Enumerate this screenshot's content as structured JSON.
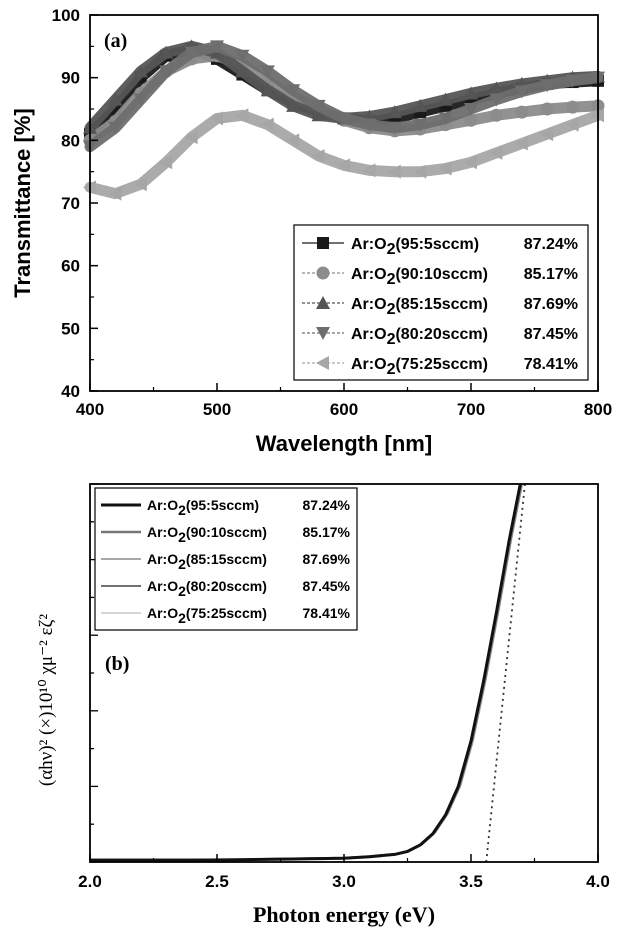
{
  "chart_data": [
    {
      "panel": "(a)",
      "type": "line",
      "xlabel": "Wavelength [nm]",
      "ylabel": "Transmittance [%]",
      "xlim": [
        400,
        800
      ],
      "ylim": [
        40,
        100
      ],
      "xticks": [
        "400",
        "500",
        "600",
        "700",
        "800"
      ],
      "yticks": [
        "40",
        "50",
        "60",
        "70",
        "80",
        "90",
        "100"
      ],
      "legend_position": "lower-right",
      "series": [
        {
          "name": "Ar:O2(95:5sccm)",
          "sub": "2",
          "pre": "Ar:O",
          "post": "(95:5sccm)",
          "avg": "87.24%",
          "color": "#1a1a1a",
          "marker": "square",
          "x": [
            400,
            420,
            440,
            460,
            480,
            500,
            520,
            540,
            560,
            580,
            600,
            620,
            640,
            660,
            680,
            700,
            720,
            740,
            760,
            780,
            800
          ],
          "y": [
            81,
            85,
            90,
            93.5,
            94.5,
            93,
            90.5,
            88,
            86,
            84.5,
            83.5,
            83,
            83.5,
            84.5,
            85.5,
            86.5,
            87.5,
            88.3,
            89,
            89.3,
            89.5
          ]
        },
        {
          "name": "Ar:O2(90:10sccm)",
          "sub": "2",
          "pre": "Ar:O",
          "post": "(90:10sccm)",
          "avg": "85.17%",
          "color": "#8c8c8c",
          "marker": "circle",
          "x": [
            400,
            420,
            440,
            460,
            480,
            500,
            520,
            540,
            560,
            580,
            600,
            620,
            640,
            660,
            680,
            700,
            720,
            740,
            760,
            780,
            800
          ],
          "y": [
            80,
            83,
            87.5,
            91,
            93,
            93.5,
            92,
            89.5,
            87,
            85,
            83.2,
            82,
            81.5,
            81.8,
            82.5,
            83.2,
            84,
            84.5,
            85,
            85.3,
            85.5
          ]
        },
        {
          "name": "Ar:O2(85:15sccm)",
          "sub": "2",
          "pre": "Ar:O",
          "post": "(85:15sccm)",
          "avg": "87.69%",
          "color": "#555555",
          "marker": "triangle-up",
          "x": [
            400,
            420,
            440,
            460,
            480,
            500,
            520,
            540,
            560,
            580,
            600,
            620,
            640,
            660,
            680,
            700,
            720,
            740,
            760,
            780,
            800
          ],
          "y": [
            82,
            86.5,
            91,
            94,
            95,
            94,
            91,
            88,
            85.5,
            84,
            83.5,
            83.8,
            84.5,
            85.5,
            86.5,
            87.5,
            88.3,
            89,
            89.5,
            90,
            90.2
          ]
        },
        {
          "name": "Ar:O2(80:20sccm)",
          "sub": "2",
          "pre": "Ar:O",
          "post": "(80:20sccm)",
          "avg": "87.45%",
          "color": "#6e6e6e",
          "marker": "triangle-down",
          "x": [
            400,
            420,
            440,
            460,
            480,
            500,
            520,
            540,
            560,
            580,
            600,
            620,
            640,
            660,
            680,
            700,
            720,
            740,
            760,
            780,
            800
          ],
          "y": [
            79,
            82,
            86.5,
            91,
            94,
            95,
            93.5,
            91,
            88,
            85.5,
            83.5,
            82.5,
            82,
            82.5,
            83.5,
            85,
            86.5,
            87.8,
            88.8,
            89.5,
            90
          ]
        },
        {
          "name": "Ar:O2(75:25sccm)",
          "sub": "2",
          "pre": "Ar:O",
          "post": "(75:25sccm)",
          "avg": "78.41%",
          "color": "#a6a6a6",
          "marker": "triangle-left",
          "x": [
            400,
            420,
            440,
            460,
            480,
            500,
            520,
            540,
            560,
            580,
            600,
            620,
            640,
            660,
            680,
            700,
            720,
            740,
            760,
            780,
            800
          ],
          "y": [
            72.5,
            71.5,
            73,
            76.5,
            80.5,
            83.5,
            84,
            82.5,
            80,
            77.5,
            76,
            75.2,
            75,
            75,
            75.5,
            76.5,
            78,
            79.5,
            81,
            82.5,
            84
          ]
        }
      ]
    },
    {
      "panel": "(b)",
      "type": "line",
      "xlabel": "Photon energy (eV)",
      "ylabel": "(αhν)² (×)10¹⁰ χμ⁻² εζ²",
      "xlim": [
        2.0,
        4.0
      ],
      "ylim": [
        0,
        10
      ],
      "xticks": [
        "2.0",
        "2.5",
        "3.0",
        "3.5",
        "4.0"
      ],
      "legend_position": "top-left",
      "series": [
        {
          "name": "Ar:O2(95:5sccm)",
          "sub": "2",
          "pre": "Ar:O",
          "post": "(95:5sccm)",
          "avg": "87.24%",
          "color": "#111111",
          "width": 3
        },
        {
          "name": "Ar:O2(90:10sccm)",
          "sub": "2",
          "pre": "Ar:O",
          "post": "(90:10sccm)",
          "avg": "85.17%",
          "color": "#777777",
          "width": 2.5
        },
        {
          "name": "Ar:O2(85:15sccm)",
          "sub": "2",
          "pre": "Ar:O",
          "post": "(85:15sccm)",
          "avg": "87.69%",
          "color": "#a8a8a8",
          "width": 2
        },
        {
          "name": "Ar:O2(80:20sccm)",
          "sub": "2",
          "pre": "Ar:O",
          "post": "(80:20sccm)",
          "avg": "87.45%",
          "color": "#444444",
          "width": 1.5
        },
        {
          "name": "Ar:O2(75:25sccm)",
          "sub": "2",
          "pre": "Ar:O",
          "post": "(75:25sccm)",
          "avg": "78.41%",
          "color": "#c8c8c8",
          "width": 1.5
        }
      ],
      "curve_x": [
        2.0,
        2.2,
        2.4,
        2.6,
        2.8,
        3.0,
        3.1,
        3.2,
        3.25,
        3.3,
        3.35,
        3.4,
        3.45,
        3.5,
        3.55,
        3.6,
        3.65,
        3.7
      ],
      "curve_y": [
        0.05,
        0.05,
        0.05,
        0.06,
        0.08,
        0.1,
        0.14,
        0.2,
        0.28,
        0.45,
        0.75,
        1.25,
        2.0,
        3.2,
        4.8,
        6.6,
        8.5,
        10.2
      ],
      "tauc_fit": {
        "x": [
          3.56,
          3.72
        ],
        "y": [
          0,
          10.5
        ]
      }
    }
  ]
}
